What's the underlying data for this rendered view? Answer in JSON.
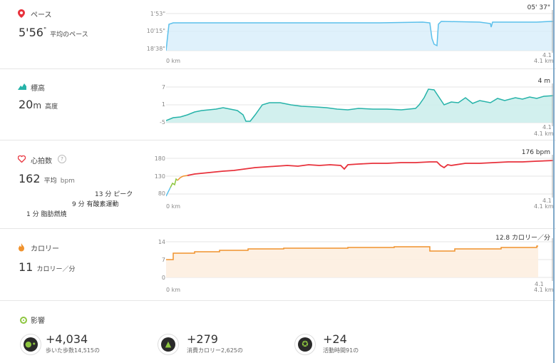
{
  "pace": {
    "title": "ペース",
    "value_main": "5'56",
    "value_suffix": "\"",
    "unit": "平均のペース",
    "axis": [
      "1'53\"",
      "10'15\"",
      "18'38\""
    ],
    "current": "05' 37\"",
    "km_start": "0 km",
    "km_end_top": "4.1",
    "km_end_bottom": "4.1 km",
    "color": "#5bc0eb"
  },
  "elevation": {
    "title": "標高",
    "value_main": "20",
    "unit_m": "m",
    "unit": "高度",
    "axis": [
      "7",
      "1",
      "-5"
    ],
    "current": "4 m",
    "km_end_top": "4.1",
    "km_end_bottom": "4.1 km",
    "color": "#26b3a9"
  },
  "heart": {
    "title": "心拍数",
    "help": "?",
    "value_main": "162",
    "unit": "平均",
    "unit2": "bpm",
    "zones": [
      {
        "minutes": "13 分",
        "label": "ピーク"
      },
      {
        "minutes": "9 分",
        "label": "有酸素運動"
      },
      {
        "minutes": "1 分",
        "label": "脂肪燃焼"
      }
    ],
    "axis": [
      "180",
      "130",
      "80"
    ],
    "current": "176 bpm",
    "km_start": "0 km",
    "km_end_top": "4.1",
    "km_end_bottom": "4.1 km",
    "color": "#e8323c"
  },
  "calories": {
    "title": "カロリー",
    "value_main": "11",
    "unit": "カロリー／分",
    "axis": [
      "14",
      "7",
      "0"
    ],
    "current": "12.8 カロリー／分",
    "km_start": "0 km",
    "km_end_top": "4.1",
    "km_end_bottom": "4.1 km",
    "color": "#f0922d"
  },
  "impact": {
    "title": "影響",
    "items": [
      {
        "value": "+4,034",
        "sub": "歩いた歩数14,515の",
        "icon": "footprints-icon"
      },
      {
        "value": "+279",
        "sub": "消費カロリー2,625の",
        "icon": "flame-icon"
      },
      {
        "value": "+24",
        "sub": "活動時間91の",
        "icon": "runner-icon"
      }
    ]
  }
}
